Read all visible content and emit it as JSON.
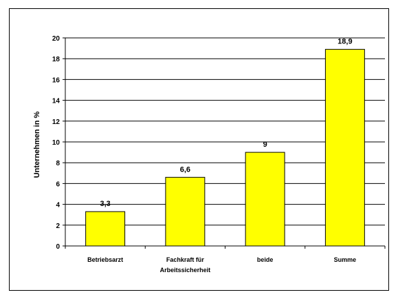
{
  "chart_data": {
    "type": "bar",
    "categories": [
      [
        "Betriebsarzt"
      ],
      [
        "Fachkraft für",
        "Arbeitssicherheit"
      ],
      [
        "beide"
      ],
      [
        "Summe"
      ]
    ],
    "values": [
      3.3,
      6.6,
      9,
      18.9
    ],
    "data_labels": [
      "3,3",
      "6,6",
      "9",
      "18,9"
    ],
    "title": "",
    "xlabel": "",
    "ylabel": "Unternehmen in %",
    "ylim": [
      0,
      20
    ],
    "yticks": [
      0,
      2,
      4,
      6,
      8,
      10,
      12,
      14,
      16,
      18,
      20
    ],
    "grid": true,
    "legend": "none",
    "colors": {
      "bar_fill": "#ffff00",
      "bar_stroke": "#000000",
      "grid": "#000000"
    }
  }
}
